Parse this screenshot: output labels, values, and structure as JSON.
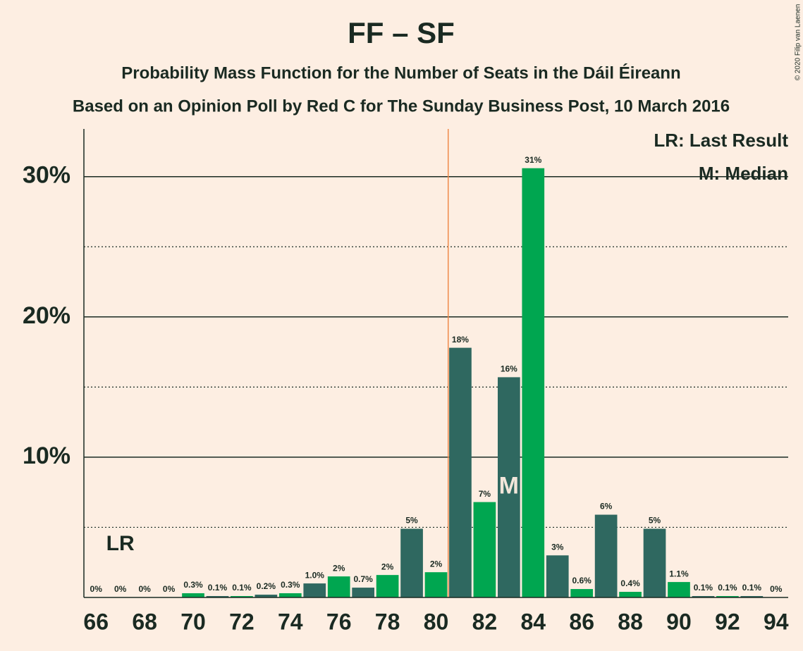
{
  "chart_data": {
    "type": "bar",
    "title": "FF – SF",
    "subtitle": "Probability Mass Function for the Number of Seats in the Dáil Éireann",
    "subtitle2": "Based on an Opinion Poll by Red C for The Sunday Business Post, 10 March 2016",
    "copyright": "© 2020 Filip van Laenen",
    "x": [
      66,
      67,
      68,
      69,
      70,
      71,
      72,
      73,
      74,
      75,
      76,
      77,
      78,
      79,
      80,
      81,
      82,
      83,
      84,
      85,
      86,
      87,
      88,
      89,
      90,
      91,
      92,
      93,
      94
    ],
    "values": [
      0,
      0,
      0,
      0,
      0.3,
      0.1,
      0.1,
      0.2,
      0.3,
      1.0,
      1.5,
      0.7,
      1.6,
      4.9,
      1.8,
      17.8,
      6.8,
      15.7,
      30.6,
      3.0,
      0.6,
      5.9,
      0.4,
      4.9,
      1.1,
      0.1,
      0.1,
      0.1,
      0
    ],
    "value_labels": [
      "0%",
      "0%",
      "0%",
      "0%",
      "0.3%",
      "0.1%",
      "0.1%",
      "0.2%",
      "0.3%",
      "1.0%",
      "2%",
      "0.7%",
      "2%",
      "5%",
      "2%",
      "18%",
      "7%",
      "16%",
      "31%",
      "3%",
      "0.6%",
      "6%",
      "0.4%",
      "5%",
      "1.1%",
      "0.1%",
      "0.1%",
      "0.1%",
      "0%"
    ],
    "bar_colors": [
      "#00a650",
      "#2f6860"
    ],
    "xlim": [
      65.5,
      94.5
    ],
    "xticks": [
      66,
      68,
      70,
      72,
      74,
      76,
      78,
      80,
      82,
      84,
      86,
      88,
      90,
      92,
      94
    ],
    "ylim": [
      0,
      33.4
    ],
    "yticks": [
      {
        "value": 10,
        "label": "10%"
      },
      {
        "value": 20,
        "label": "20%"
      },
      {
        "value": 30,
        "label": "30%"
      }
    ],
    "minor_yticks": [
      5,
      15,
      25
    ],
    "grid": true,
    "majority_line": 80.5,
    "majority_color": "#f08a4b",
    "last_result": 67,
    "last_result_label": "LR",
    "median": 83,
    "median_label": "M",
    "legend": [
      "LR: Last Result",
      "M: Median"
    ]
  }
}
